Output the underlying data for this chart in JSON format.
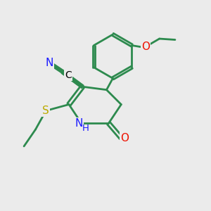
{
  "background_color": "#ebebeb",
  "bond_color": "#2d8a4e",
  "bond_width": 2.0,
  "atoms": {
    "N": {
      "color": "#1a1aff"
    },
    "O": {
      "color": "#ee1100"
    },
    "S": {
      "color": "#bbaa00"
    },
    "C_nitrile": {
      "color": "#000000"
    }
  }
}
